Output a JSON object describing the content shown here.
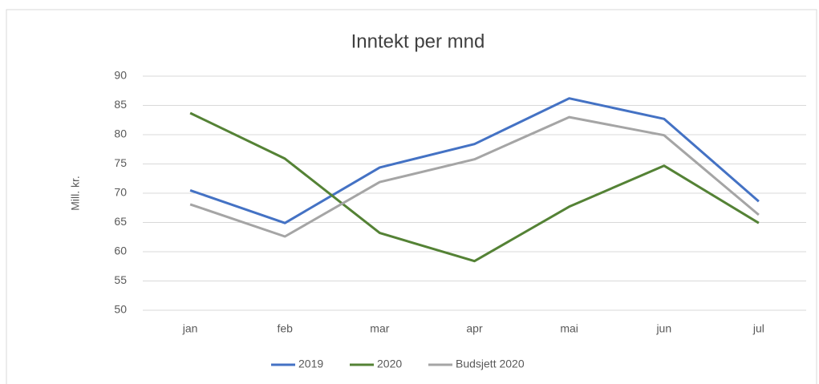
{
  "chart_data": {
    "type": "line",
    "title": "Inntekt per mnd",
    "y_label": "Mill. kr.",
    "categories": [
      "jan",
      "feb",
      "mar",
      "apr",
      "mai",
      "jun",
      "jul"
    ],
    "series": [
      {
        "name": "2019",
        "color": "#4472c4",
        "values": [
          70.5,
          64.9,
          74.4,
          78.4,
          86.2,
          82.7,
          68.6
        ]
      },
      {
        "name": "2020",
        "color": "#548235",
        "values": [
          83.7,
          75.9,
          63.2,
          58.4,
          67.7,
          74.7,
          64.9
        ]
      },
      {
        "name": "Budsjett 2020",
        "color": "#a5a5a5",
        "values": [
          68.1,
          62.6,
          71.9,
          75.8,
          83.0,
          79.9,
          66.3
        ]
      }
    ],
    "ylim": [
      50,
      90
    ],
    "yticks": [
      50,
      55,
      60,
      65,
      70,
      75,
      80,
      85,
      90
    ],
    "grid": true,
    "legend": "bottom"
  }
}
